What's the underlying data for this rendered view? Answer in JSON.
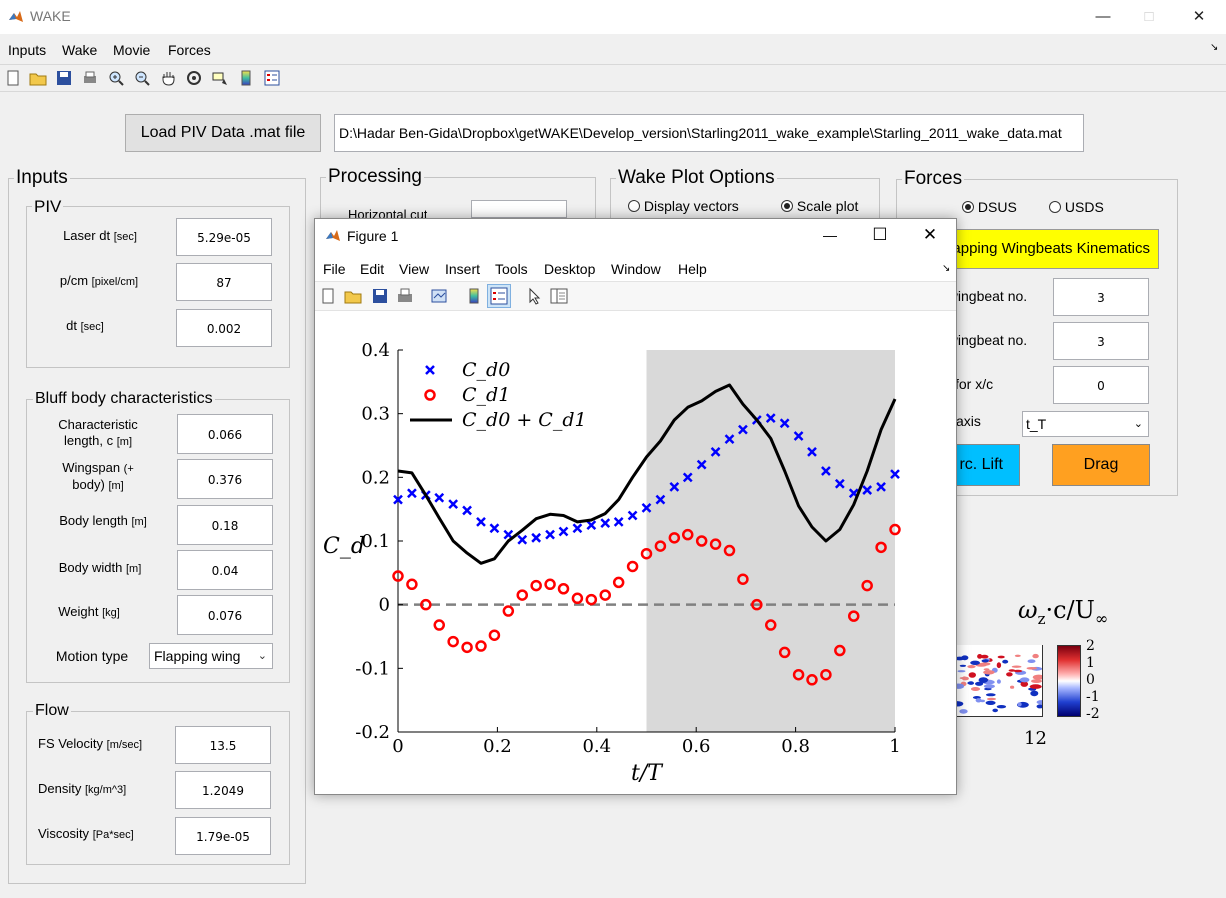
{
  "app": {
    "title": "WAKE"
  },
  "menu": [
    "Inputs",
    "Wake",
    "Movie",
    "Forces"
  ],
  "toolbar_icons": [
    "new-file-icon",
    "open-folder-icon",
    "save-icon",
    "print-icon",
    "zoom-in-icon",
    "zoom-out-icon",
    "pan-hand-icon",
    "rotate-icon",
    "data-cursor-icon",
    "colorbar-icon",
    "legend-icon"
  ],
  "load": {
    "button": "Load PIV Data .mat file",
    "path": "D:\\Hadar Ben-Gida\\Dropbox\\getWAKE\\Develop_version\\Starling2011_wake_example\\Starling_2011_wake_data.mat"
  },
  "inputs": {
    "title": "Inputs",
    "piv": {
      "title": "PIV",
      "fields": [
        {
          "label": "Laser dt",
          "unit": "[sec]",
          "value": "5.29e-05"
        },
        {
          "label": "p/cm",
          "unit": "[pixel/cm]",
          "value": "87"
        },
        {
          "label": "dt",
          "unit": "[sec]",
          "value": "0.002"
        }
      ]
    },
    "bluff": {
      "title": "Bluff body characteristics",
      "fields": [
        {
          "label": "Characteristic",
          "label2": "length, c",
          "unit": "[m]",
          "value": "0.066"
        },
        {
          "label": "Wingspan",
          "label2": "body)",
          "unit": "(+",
          "unit2": "[m]",
          "value": "0.376"
        },
        {
          "label": "Body length",
          "unit": "[m]",
          "value": "0.18"
        },
        {
          "label": "Body width",
          "unit": "[m]",
          "value": "0.04"
        },
        {
          "label": "Weight",
          "unit": "[kg]",
          "value": "0.076"
        }
      ],
      "motion_label": "Motion type",
      "motion_value": "Flapping wing"
    },
    "flow": {
      "title": "Flow",
      "fields": [
        {
          "label": "FS Velocity",
          "unit": "[m/sec]",
          "value": "13.5"
        },
        {
          "label": "Density",
          "unit": "[kg/m^3]",
          "value": "1.2049"
        },
        {
          "label": "Viscosity",
          "unit": "[Pa*sec]",
          "value": "1.79e-05"
        }
      ]
    }
  },
  "processing": {
    "title": "Processing",
    "cut_label": "Horizontal cut"
  },
  "wake_plot": {
    "title": "Wake Plot Options",
    "opt1": "Display vectors",
    "opt2": "Scale plot"
  },
  "forces": {
    "title": "Forces",
    "radio1": "DSUS",
    "radio2": "USDS",
    "kin_button": "Flapping Wingbeats Kinematics",
    "rows": [
      {
        "label": "t wingbeat no.",
        "value": "3"
      },
      {
        "label": "t wingbeat no.",
        "value": "3"
      },
      {
        "label": "for x/c",
        "value": "0"
      },
      {
        "label": "axis",
        "value": "t_T"
      }
    ],
    "lift_button": "rc. Lift",
    "drag_button": "Drag",
    "colors": {
      "kin": "#ffff00",
      "lift": "#00bfff",
      "drag": "#ffa020"
    }
  },
  "colorbar": {
    "title_main": "ω",
    "title_sub": "z",
    "title_rest": "·c/U",
    "title_sub2": "∞",
    "ticks": [
      "2",
      "1",
      "0",
      "-1",
      "-2"
    ],
    "axis_tick": "12"
  },
  "figure": {
    "title": "Figure 1",
    "menu": [
      "File",
      "Edit",
      "View",
      "Insert",
      "Tools",
      "Desktop",
      "Window",
      "Help"
    ]
  },
  "chart_data": {
    "type": "line",
    "xlabel": "t/T",
    "ylabel": "C_d",
    "xlim": [
      0,
      1
    ],
    "ylim": [
      -0.2,
      0.4
    ],
    "xticks": [
      "0",
      "0.2",
      "0.4",
      "0.6",
      "0.8",
      "1"
    ],
    "yticks": [
      "0.4",
      "0.3",
      "0.2",
      "0.1",
      "0",
      "-0.1",
      "-0.2"
    ],
    "shaded_region": [
      0.5,
      1.0
    ],
    "legend": [
      "C_d0",
      "C_d1",
      "C_d0 + C_d1"
    ],
    "series": [
      {
        "name": "C_d0",
        "style": "x-markers",
        "color": "#0000ff",
        "x": [
          0,
          0.028,
          0.056,
          0.083,
          0.111,
          0.139,
          0.167,
          0.194,
          0.222,
          0.25,
          0.278,
          0.306,
          0.333,
          0.361,
          0.389,
          0.417,
          0.444,
          0.472,
          0.5,
          0.528,
          0.556,
          0.583,
          0.611,
          0.639,
          0.667,
          0.694,
          0.722,
          0.75,
          0.778,
          0.806,
          0.833,
          0.861,
          0.889,
          0.917,
          0.944,
          0.972,
          1.0
        ],
        "y": [
          0.165,
          0.175,
          0.172,
          0.168,
          0.158,
          0.148,
          0.13,
          0.12,
          0.11,
          0.102,
          0.105,
          0.11,
          0.115,
          0.12,
          0.125,
          0.128,
          0.13,
          0.14,
          0.152,
          0.165,
          0.185,
          0.2,
          0.22,
          0.24,
          0.26,
          0.275,
          0.29,
          0.293,
          0.285,
          0.265,
          0.24,
          0.21,
          0.19,
          0.175,
          0.18,
          0.185,
          0.205
        ]
      },
      {
        "name": "C_d1",
        "style": "o-markers",
        "color": "#ff0000",
        "x": [
          0,
          0.028,
          0.056,
          0.083,
          0.111,
          0.139,
          0.167,
          0.194,
          0.222,
          0.25,
          0.278,
          0.306,
          0.333,
          0.361,
          0.389,
          0.417,
          0.444,
          0.472,
          0.5,
          0.528,
          0.556,
          0.583,
          0.611,
          0.639,
          0.667,
          0.694,
          0.722,
          0.75,
          0.778,
          0.806,
          0.833,
          0.861,
          0.889,
          0.917,
          0.944,
          0.972,
          1.0
        ],
        "y": [
          0.045,
          0.032,
          0.0,
          -0.032,
          -0.058,
          -0.067,
          -0.065,
          -0.048,
          -0.01,
          0.015,
          0.03,
          0.032,
          0.025,
          0.01,
          0.008,
          0.015,
          0.035,
          0.06,
          0.08,
          0.092,
          0.105,
          0.11,
          0.1,
          0.095,
          0.085,
          0.04,
          0.0,
          -0.032,
          -0.075,
          -0.11,
          -0.118,
          -0.11,
          -0.072,
          -0.018,
          0.03,
          0.09,
          0.118
        ]
      },
      {
        "name": "C_d0 + C_d1",
        "style": "line",
        "color": "#000000",
        "x": [
          0,
          0.028,
          0.056,
          0.083,
          0.111,
          0.139,
          0.167,
          0.194,
          0.222,
          0.25,
          0.278,
          0.306,
          0.333,
          0.361,
          0.389,
          0.417,
          0.444,
          0.472,
          0.5,
          0.528,
          0.556,
          0.583,
          0.611,
          0.639,
          0.667,
          0.694,
          0.722,
          0.75,
          0.778,
          0.806,
          0.833,
          0.861,
          0.889,
          0.917,
          0.944,
          0.972,
          1.0
        ],
        "y": [
          0.21,
          0.207,
          0.172,
          0.136,
          0.1,
          0.081,
          0.065,
          0.072,
          0.1,
          0.117,
          0.135,
          0.142,
          0.14,
          0.13,
          0.133,
          0.143,
          0.165,
          0.2,
          0.232,
          0.257,
          0.29,
          0.31,
          0.32,
          0.335,
          0.345,
          0.315,
          0.29,
          0.261,
          0.21,
          0.155,
          0.122,
          0.1,
          0.118,
          0.157,
          0.21,
          0.275,
          0.323
        ]
      }
    ],
    "zero_line": 0
  }
}
